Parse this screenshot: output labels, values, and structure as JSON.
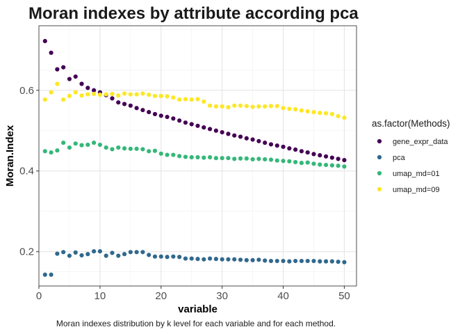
{
  "chart_data": {
    "type": "scatter",
    "title": "Moran indexes by attribute according  pca",
    "xlabel": "variable",
    "ylabel": "Moran.Index",
    "caption": "Moran indexes distribution by k level for each variable and for each method.",
    "xlim": [
      0,
      52
    ],
    "ylim": [
      0.115,
      0.76
    ],
    "xticks": [
      0,
      10,
      20,
      30,
      40,
      50
    ],
    "yticks": [
      0.2,
      0.4,
      0.6
    ],
    "ytick_labels": [
      "0.2",
      "0.4",
      "0.6"
    ],
    "grid": true,
    "legend": {
      "title": "as.factor(Methods)",
      "placement": "right"
    },
    "series": [
      {
        "name": "gene_expr_data",
        "color": "#440154",
        "x": [
          1,
          2,
          3,
          4,
          5,
          6,
          7,
          8,
          9,
          10,
          11,
          12,
          13,
          14,
          15,
          16,
          17,
          18,
          19,
          20,
          21,
          22,
          23,
          24,
          25,
          26,
          27,
          28,
          29,
          30,
          31,
          32,
          33,
          34,
          35,
          36,
          37,
          38,
          39,
          40,
          41,
          42,
          43,
          44,
          45,
          46,
          47,
          48,
          49,
          50
        ],
        "values": [
          0.722,
          0.693,
          0.652,
          0.657,
          0.628,
          0.634,
          0.616,
          0.606,
          0.6,
          0.595,
          0.588,
          0.58,
          0.57,
          0.566,
          0.562,
          0.556,
          0.551,
          0.546,
          0.541,
          0.537,
          0.534,
          0.53,
          0.525,
          0.52,
          0.516,
          0.512,
          0.508,
          0.504,
          0.5,
          0.496,
          0.492,
          0.488,
          0.485,
          0.481,
          0.478,
          0.474,
          0.47,
          0.466,
          0.463,
          0.46,
          0.456,
          0.453,
          0.449,
          0.446,
          0.442,
          0.439,
          0.436,
          0.433,
          0.43,
          0.427
        ]
      },
      {
        "name": "pca",
        "color": "#31688e",
        "x": [
          1,
          2,
          3,
          4,
          5,
          6,
          7,
          8,
          9,
          10,
          11,
          12,
          13,
          14,
          15,
          16,
          17,
          18,
          19,
          20,
          21,
          22,
          23,
          24,
          25,
          26,
          27,
          28,
          29,
          30,
          31,
          32,
          33,
          34,
          35,
          36,
          37,
          38,
          39,
          40,
          41,
          42,
          43,
          44,
          45,
          46,
          47,
          48,
          49,
          50
        ],
        "values": [
          0.143,
          0.143,
          0.195,
          0.199,
          0.19,
          0.198,
          0.191,
          0.194,
          0.201,
          0.201,
          0.19,
          0.197,
          0.19,
          0.194,
          0.199,
          0.199,
          0.199,
          0.192,
          0.188,
          0.188,
          0.187,
          0.188,
          0.187,
          0.183,
          0.183,
          0.182,
          0.181,
          0.183,
          0.182,
          0.181,
          0.181,
          0.181,
          0.18,
          0.179,
          0.179,
          0.18,
          0.178,
          0.177,
          0.177,
          0.177,
          0.176,
          0.177,
          0.177,
          0.177,
          0.177,
          0.176,
          0.176,
          0.176,
          0.175,
          0.174
        ]
      },
      {
        "name": "umap_md=01",
        "color": "#35b779",
        "x": [
          1,
          2,
          3,
          4,
          5,
          6,
          7,
          8,
          9,
          10,
          11,
          12,
          13,
          14,
          15,
          16,
          17,
          18,
          19,
          20,
          21,
          22,
          23,
          24,
          25,
          26,
          27,
          28,
          29,
          30,
          31,
          32,
          33,
          34,
          35,
          36,
          37,
          38,
          39,
          40,
          41,
          42,
          43,
          44,
          45,
          46,
          47,
          48,
          49,
          50
        ],
        "values": [
          0.449,
          0.446,
          0.451,
          0.47,
          0.458,
          0.468,
          0.464,
          0.465,
          0.47,
          0.465,
          0.458,
          0.454,
          0.458,
          0.456,
          0.455,
          0.455,
          0.454,
          0.449,
          0.45,
          0.443,
          0.44,
          0.44,
          0.437,
          0.435,
          0.434,
          0.434,
          0.433,
          0.434,
          0.432,
          0.432,
          0.432,
          0.43,
          0.431,
          0.431,
          0.429,
          0.43,
          0.429,
          0.428,
          0.426,
          0.425,
          0.424,
          0.422,
          0.42,
          0.421,
          0.418,
          0.416,
          0.415,
          0.414,
          0.413,
          0.411
        ]
      },
      {
        "name": "umap_md=09",
        "color": "#fde725",
        "x": [
          1,
          2,
          3,
          4,
          5,
          6,
          7,
          8,
          9,
          10,
          11,
          12,
          13,
          14,
          15,
          16,
          17,
          18,
          19,
          20,
          21,
          22,
          23,
          24,
          25,
          26,
          27,
          28,
          29,
          30,
          31,
          32,
          33,
          34,
          35,
          36,
          37,
          38,
          39,
          40,
          41,
          42,
          43,
          44,
          45,
          46,
          47,
          48,
          49,
          50
        ],
        "values": [
          0.577,
          0.595,
          0.616,
          0.577,
          0.586,
          0.595,
          0.587,
          0.59,
          0.591,
          0.589,
          0.59,
          0.591,
          0.587,
          0.592,
          0.59,
          0.59,
          0.592,
          0.589,
          0.586,
          0.586,
          0.585,
          0.582,
          0.577,
          0.578,
          0.577,
          0.578,
          0.572,
          0.562,
          0.56,
          0.56,
          0.558,
          0.562,
          0.562,
          0.561,
          0.559,
          0.56,
          0.56,
          0.561,
          0.561,
          0.556,
          0.554,
          0.553,
          0.55,
          0.548,
          0.546,
          0.544,
          0.543,
          0.541,
          0.536,
          0.532
        ]
      }
    ]
  }
}
